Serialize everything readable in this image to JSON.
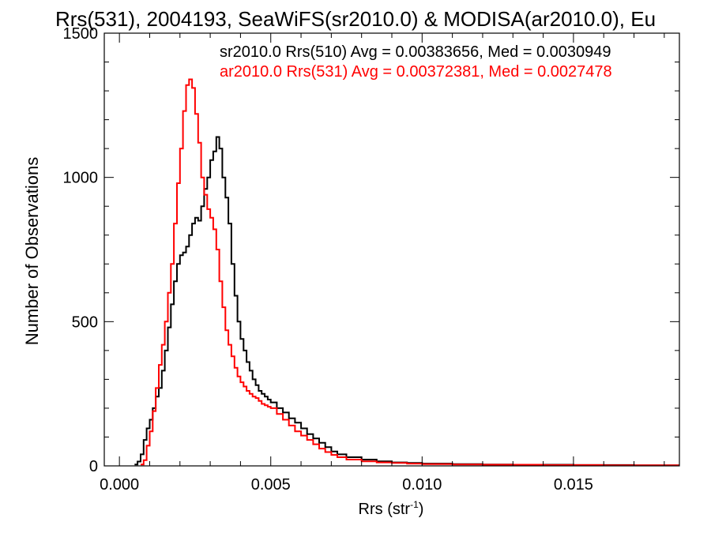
{
  "chart_data": {
    "type": "line",
    "title": "Rrs(531), 2004193, SeaWiFS(sr2010.0) & MODISA(ar2010.0), Eu",
    "xlabel": "Rrs (str",
    "xlabel_sup": "-1",
    "xlabel_close": ")",
    "ylabel": "Number of Observations",
    "xlim": [
      -0.0005,
      0.0185
    ],
    "ylim": [
      0,
      1500
    ],
    "x_ticks": [
      0.0,
      0.005,
      0.01,
      0.015
    ],
    "x_tick_labels": [
      "0.000",
      "0.005",
      "0.010",
      "0.015"
    ],
    "y_ticks": [
      0,
      500,
      1000,
      1500
    ],
    "y_tick_labels": [
      "0",
      "500",
      "1000",
      "1500"
    ],
    "grid": false,
    "legend_position": "top-right",
    "series": [
      {
        "name": "sr2010.0 Rrs(510) Avg = 0.00383656, Med = 0.0030949",
        "color": "#000000",
        "x": [
          0.0005,
          0.0006,
          0.0007,
          0.0008,
          0.0009,
          0.001,
          0.0011,
          0.0012,
          0.0013,
          0.0014,
          0.0015,
          0.0016,
          0.0017,
          0.0018,
          0.0019,
          0.002,
          0.0021,
          0.0022,
          0.0023,
          0.0024,
          0.0025,
          0.0026,
          0.0027,
          0.0028,
          0.0029,
          0.003,
          0.0031,
          0.0032,
          0.0033,
          0.0034,
          0.0035,
          0.0036,
          0.0037,
          0.0038,
          0.0039,
          0.004,
          0.0041,
          0.0042,
          0.0043,
          0.0044,
          0.0045,
          0.0046,
          0.0047,
          0.0048,
          0.0049,
          0.005,
          0.0052,
          0.0054,
          0.0056,
          0.0058,
          0.006,
          0.0062,
          0.0064,
          0.0066,
          0.0068,
          0.007,
          0.0072,
          0.0075,
          0.008,
          0.0085,
          0.009,
          0.0095,
          0.01,
          0.011,
          0.012,
          0.013,
          0.014,
          0.015,
          0.016,
          0.017,
          0.018
        ],
        "y": [
          5,
          15,
          40,
          90,
          130,
          160,
          200,
          240,
          270,
          330,
          400,
          480,
          560,
          640,
          700,
          730,
          740,
          760,
          800,
          840,
          860,
          850,
          900,
          960,
          1000,
          1060,
          1090,
          1140,
          1100,
          1000,
          930,
          840,
          700,
          590,
          500,
          440,
          400,
          360,
          330,
          300,
          280,
          260,
          250,
          240,
          230,
          220,
          200,
          185,
          165,
          150,
          130,
          110,
          95,
          80,
          65,
          50,
          40,
          30,
          22,
          16,
          12,
          10,
          8,
          6,
          5,
          4,
          4,
          3,
          3,
          2,
          2
        ]
      },
      {
        "name": "ar2010.0 Rrs(531) Avg = 0.00372381, Med = 0.0027478",
        "color": "#ff0000",
        "x": [
          0.0007,
          0.0008,
          0.0009,
          0.001,
          0.0011,
          0.0012,
          0.0013,
          0.0014,
          0.0015,
          0.0016,
          0.0017,
          0.0018,
          0.0019,
          0.002,
          0.0021,
          0.0022,
          0.0023,
          0.0024,
          0.0025,
          0.0026,
          0.0027,
          0.0028,
          0.0029,
          0.003,
          0.0031,
          0.0032,
          0.0033,
          0.0034,
          0.0035,
          0.0036,
          0.0037,
          0.0038,
          0.0039,
          0.004,
          0.0041,
          0.0042,
          0.0043,
          0.0044,
          0.0045,
          0.0046,
          0.0047,
          0.0048,
          0.0049,
          0.005,
          0.0052,
          0.0054,
          0.0056,
          0.0058,
          0.006,
          0.0062,
          0.0064,
          0.0066,
          0.0068,
          0.007,
          0.0072,
          0.0075,
          0.008,
          0.0085,
          0.009,
          0.0095,
          0.01,
          0.011,
          0.012,
          0.013,
          0.014,
          0.015,
          0.016,
          0.017,
          0.018
        ],
        "y": [
          5,
          20,
          70,
          120,
          190,
          270,
          350,
          420,
          500,
          600,
          700,
          840,
          980,
          1100,
          1230,
          1320,
          1340,
          1310,
          1220,
          1120,
          1000,
          940,
          890,
          860,
          820,
          750,
          640,
          550,
          470,
          420,
          380,
          340,
          310,
          290,
          275,
          260,
          250,
          240,
          235,
          225,
          215,
          210,
          205,
          200,
          180,
          160,
          140,
          120,
          105,
          90,
          75,
          60,
          48,
          38,
          30,
          22,
          16,
          12,
          10,
          8,
          6,
          5,
          4,
          4,
          3,
          3,
          2,
          2,
          2
        ]
      }
    ]
  }
}
